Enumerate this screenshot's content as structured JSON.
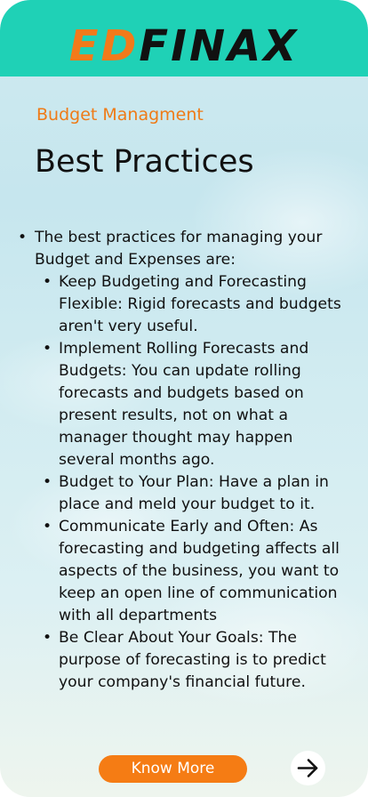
{
  "header": {
    "logo_part1": "ED",
    "logo_part2": "FINAX",
    "background_color": "#1fd1b6",
    "logo_accent_color": "#f37a1a"
  },
  "page": {
    "subtitle": "Budget Managment",
    "title": "Best Practices"
  },
  "content": {
    "intro": "The best practices for managing your Budget and Expenses are:",
    "items": [
      "Keep Budgeting and Forecasting Flexible: Rigid forecasts and budgets aren't very useful.",
      "Implement Rolling Forecasts and Budgets: You can update rolling forecasts and budgets based on present results, not on what a manager thought may happen several months ago.",
      "Budget to Your Plan: Have a plan in place and meld your budget to it.",
      "Communicate Early and Often: As forecasting and budgeting affects all aspects of the business, you want to keep an open line of communication with all departments",
      "Be Clear About Your Goals: The purpose of forecasting is to predict your company's financial future."
    ]
  },
  "footer": {
    "know_more_label": "Know More",
    "know_more_color": "#f57c14",
    "next_icon": "arrow-right-icon"
  }
}
